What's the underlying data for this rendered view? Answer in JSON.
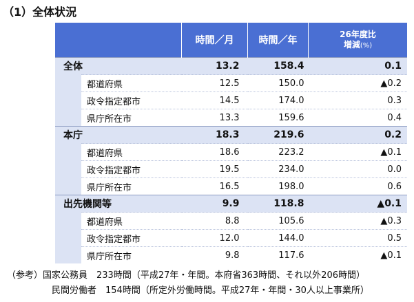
{
  "header": {
    "title": "（1）全体状況"
  },
  "table": {
    "columns": [
      "時間／月",
      "時間／年"
    ],
    "change_header": [
      "26年度比",
      "増減",
      "(%)"
    ],
    "rows": [
      {
        "label": "全体",
        "group": true,
        "month": "13.2",
        "year": "158.4",
        "change": "0.1"
      },
      {
        "label": "都道府県",
        "month": "12.5",
        "year": "150.0",
        "change": "▲0.2"
      },
      {
        "label": "政令指定都市",
        "month": "14.5",
        "year": "174.0",
        "change": "0.3"
      },
      {
        "label": "県庁所在市",
        "month": "13.3",
        "year": "159.6",
        "change": "0.4"
      },
      {
        "label": "本庁",
        "group": true,
        "month": "18.3",
        "year": "219.6",
        "change": "0.2"
      },
      {
        "label": "都道府県",
        "month": "18.6",
        "year": "223.2",
        "change": "▲0.1"
      },
      {
        "label": "政令指定都市",
        "month": "19.5",
        "year": "234.0",
        "change": "0.0"
      },
      {
        "label": "県庁所在市",
        "month": "16.5",
        "year": "198.0",
        "change": "0.6"
      },
      {
        "label": "出先機関等",
        "group": true,
        "month": "9.9",
        "year": "118.8",
        "change": "▲0.1"
      },
      {
        "label": "都道府県",
        "month": "8.8",
        "year": "105.6",
        "change": "▲0.3"
      },
      {
        "label": "政令指定都市",
        "month": "12.0",
        "year": "144.0",
        "change": "0.5"
      },
      {
        "label": "県庁所在市",
        "month": "9.8",
        "year": "117.6",
        "change": "▲0.1"
      }
    ]
  },
  "notes": {
    "label": "（参考）",
    "lines": [
      "国家公務員　233時間（平成27年・年間。本府省363時間、それ以外206時間）",
      "民間労働者　154時間（所定外労働時間。平成27年・年間・30人以上事業所）"
    ]
  }
}
